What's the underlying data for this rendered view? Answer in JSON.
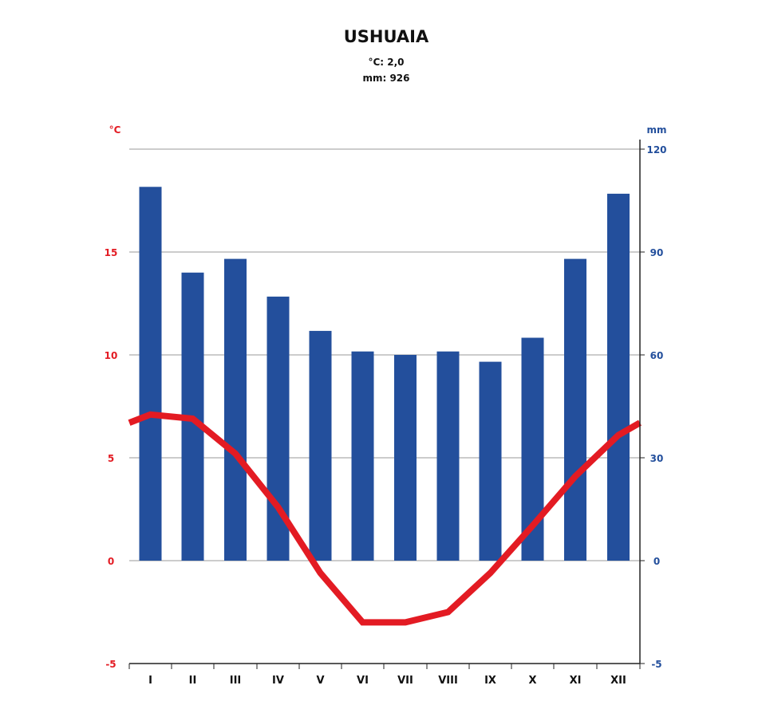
{
  "chart_data": {
    "type": "bar+line",
    "title": "USHUAIA",
    "subtitle_lines": [
      "°C: 2,0",
      "mm: 926"
    ],
    "categories": [
      "I",
      "II",
      "III",
      "IV",
      "V",
      "VI",
      "VII",
      "VIII",
      "IX",
      "X",
      "XI",
      "XII"
    ],
    "series": [
      {
        "axis": "right",
        "kind": "bar",
        "values": [
          109,
          84,
          88,
          77,
          67,
          61,
          60,
          61,
          58,
          65,
          88,
          107
        ]
      },
      {
        "axis": "left",
        "kind": "line",
        "values": [
          7.1,
          6.9,
          5.2,
          2.6,
          -0.6,
          -3.0,
          -3.0,
          -2.5,
          -0.6,
          1.7,
          4.1,
          6.1
        ]
      }
    ],
    "left_axis": {
      "label": "°C",
      "range": [
        -5,
        20
      ],
      "ticks": [
        "-5",
        "0",
        "5",
        "10",
        "15"
      ]
    },
    "right_axis": {
      "label": "mm",
      "range": [
        -5,
        120
      ],
      "ticks": [
        "-5",
        "0",
        "30",
        "60",
        "90",
        "120"
      ]
    },
    "grid": true,
    "colors": {
      "bars": "#234f9c",
      "line": "#e31b23",
      "left_axis": "#e31b23",
      "right_axis": "#234f9c"
    }
  }
}
